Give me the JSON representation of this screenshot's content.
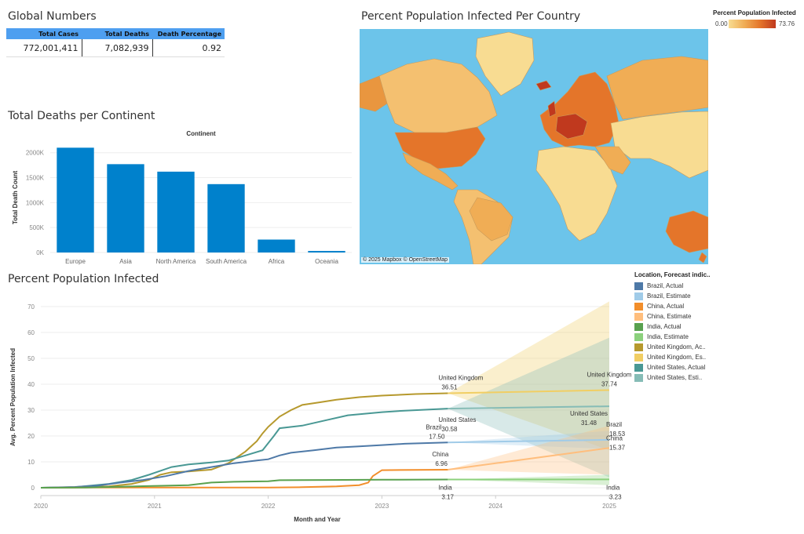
{
  "global_numbers": {
    "title": "Global Numbers",
    "headers": [
      "Total Cases",
      "Total Deaths",
      "Death Percentage"
    ],
    "values": [
      "772,001,411",
      "7,082,939",
      "0.92"
    ]
  },
  "map": {
    "title": "Percent Population Infected Per Country",
    "credit": "© 2025 Mapbox © OpenStreetMap",
    "legend_title": "Percent Population Infected",
    "legend_min": "0.00",
    "legend_max": "73.76",
    "colors": {
      "water": "#6cc4ea",
      "low": "#f8dc92",
      "mid": "#f0ad55",
      "high": "#e4752a",
      "max": "#c0391e"
    }
  },
  "chart_data": [
    {
      "type": "bar",
      "title": "Total Deaths per Continent",
      "subtitle": "Continent",
      "ylabel": "Total Death Count",
      "categories": [
        "Europe",
        "Asia",
        "North America",
        "South America",
        "Africa",
        "Oceania"
      ],
      "values": [
        2100000,
        1770000,
        1620000,
        1370000,
        259000,
        31000
      ],
      "yticks": [
        0,
        500000,
        1000000,
        1500000,
        2000000
      ],
      "ytick_labels": [
        "0K",
        "500K",
        "1000K",
        "1500K",
        "2000K"
      ],
      "ylim": [
        0,
        2200000
      ],
      "color": "#0081cc"
    },
    {
      "type": "line",
      "title": "Percent Population Infected",
      "xlabel": "Month and Year",
      "ylabel": "Avg. Percent Population Infected",
      "xlim": [
        2020,
        2025
      ],
      "ylim": [
        0,
        70
      ],
      "xticks": [
        2020,
        2021,
        2022,
        2023,
        2024,
        2025
      ],
      "yticks": [
        0,
        10,
        20,
        30,
        40,
        50,
        60,
        70
      ],
      "forecast_start": 2023.58,
      "legend_title": "Location, Forecast indic..",
      "legend": [
        {
          "label": "Brazil, Actual",
          "color": "#4e79a7"
        },
        {
          "label": "Brazil, Estimate",
          "color": "#a0cbe8"
        },
        {
          "label": "China, Actual",
          "color": "#f28e2b"
        },
        {
          "label": "China, Estimate",
          "color": "#ffbe7d"
        },
        {
          "label": "India, Actual",
          "color": "#59a14f"
        },
        {
          "label": "India, Estimate",
          "color": "#8cd17d"
        },
        {
          "label": "United Kingdom, Ac..",
          "color": "#b6992d"
        },
        {
          "label": "United Kingdom, Es..",
          "color": "#f1ce63"
        },
        {
          "label": "United States, Actual",
          "color": "#499894"
        },
        {
          "label": "United States, Esti..",
          "color": "#86bcb6"
        }
      ],
      "series": [
        {
          "name": "United Kingdom",
          "color": "#b6992d",
          "est_color": "#f1ce63",
          "x": [
            2020.0,
            2020.3,
            2020.6,
            2020.8,
            2020.95,
            2021.05,
            2021.15,
            2021.3,
            2021.5,
            2021.65,
            2021.8,
            2021.9,
            2021.95,
            2022.0,
            2022.1,
            2022.2,
            2022.3,
            2022.45,
            2022.6,
            2022.8,
            2023.0,
            2023.3,
            2023.58
          ],
          "y": [
            0,
            0.1,
            0.5,
            1.5,
            3.0,
            5.0,
            6.0,
            6.3,
            7.0,
            9.5,
            14.0,
            18.0,
            21.0,
            23.5,
            27.5,
            30.0,
            32.0,
            33.0,
            34.0,
            35.0,
            35.6,
            36.2,
            36.51
          ],
          "last_actual": 36.51,
          "end_estimate": 37.74,
          "band_low": 14.5,
          "band_high": 72.0
        },
        {
          "name": "United States",
          "color": "#499894",
          "est_color": "#86bcb6",
          "x": [
            2020.0,
            2020.3,
            2020.6,
            2020.8,
            2020.95,
            2021.05,
            2021.15,
            2021.3,
            2021.5,
            2021.65,
            2021.8,
            2021.95,
            2022.05,
            2022.1,
            2022.3,
            2022.5,
            2022.7,
            2023.0,
            2023.2,
            2023.58
          ],
          "y": [
            0,
            0.2,
            1.5,
            3.0,
            5.0,
            6.5,
            8.0,
            9.0,
            9.8,
            10.5,
            12.5,
            14.5,
            20.0,
            23.0,
            24.0,
            26.0,
            28.0,
            29.2,
            29.8,
            30.58
          ],
          "last_actual": 30.58,
          "end_estimate": 31.48,
          "band_low": 4.0,
          "band_high": 58.0
        },
        {
          "name": "Brazil",
          "color": "#4e79a7",
          "est_color": "#a0cbe8",
          "x": [
            2020.0,
            2020.3,
            2020.5,
            2020.7,
            2020.9,
            2021.1,
            2021.3,
            2021.5,
            2021.7,
            2021.9,
            2022.0,
            2022.1,
            2022.2,
            2022.4,
            2022.6,
            2022.8,
            2023.0,
            2023.2,
            2023.58
          ],
          "y": [
            0,
            0.3,
            0.8,
            2.0,
            3.0,
            4.5,
            6.5,
            8.0,
            9.5,
            10.5,
            11.0,
            12.5,
            13.5,
            14.5,
            15.5,
            16.0,
            16.5,
            17.0,
            17.5
          ],
          "last_actual": 17.5,
          "end_estimate": 18.53,
          "band_low": 15.0,
          "band_high": 22.0
        },
        {
          "name": "China",
          "color": "#f28e2b",
          "est_color": "#ffbe7d",
          "x": [
            2020.0,
            2020.5,
            2021.0,
            2021.5,
            2022.0,
            2022.3,
            2022.6,
            2022.8,
            2022.88,
            2022.92,
            2023.0,
            2023.3,
            2023.58
          ],
          "y": [
            0,
            0.05,
            0.05,
            0.05,
            0.1,
            0.2,
            0.5,
            1.0,
            2.0,
            4.5,
            6.8,
            6.9,
            6.96
          ],
          "last_actual": 6.96,
          "end_estimate": 15.37,
          "band_low": 5.0,
          "band_high": 24.0
        },
        {
          "name": "India",
          "color": "#59a14f",
          "est_color": "#8cd17d",
          "x": [
            2020.0,
            2020.4,
            2020.7,
            2020.9,
            2021.1,
            2021.3,
            2021.5,
            2021.7,
            2022.0,
            2022.1,
            2022.5,
            2023.0,
            2023.58
          ],
          "y": [
            0,
            0.1,
            0.4,
            0.6,
            0.8,
            1.0,
            2.0,
            2.3,
            2.5,
            2.9,
            3.0,
            3.1,
            3.17
          ],
          "last_actual": 3.17,
          "end_estimate": 3.23,
          "band_low": 1.0,
          "band_high": 5.0
        }
      ],
      "annotations": [
        {
          "series": "United Kingdom",
          "side": "start",
          "name": "United Kingdom",
          "value": "36.51"
        },
        {
          "series": "United Kingdom",
          "side": "end",
          "name": "United Kingdom",
          "value": "37.74"
        },
        {
          "series": "United States",
          "side": "start",
          "name": "United States",
          "value": "30.58"
        },
        {
          "series": "United States",
          "side": "end",
          "name": "United States",
          "value": "31.48"
        },
        {
          "series": "Brazil",
          "side": "start",
          "name": "Brazil",
          "value": "17.50"
        },
        {
          "series": "Brazil",
          "side": "end",
          "name": "Brazil",
          "value": "18.53"
        },
        {
          "series": "China",
          "side": "start",
          "name": "China",
          "value": "6.96"
        },
        {
          "series": "China",
          "side": "end",
          "name": "China",
          "value": "15.37"
        },
        {
          "series": "India",
          "side": "start",
          "name": "India",
          "value": "3.17"
        },
        {
          "series": "India",
          "side": "end",
          "name": "India",
          "value": "3.23"
        }
      ]
    }
  ]
}
